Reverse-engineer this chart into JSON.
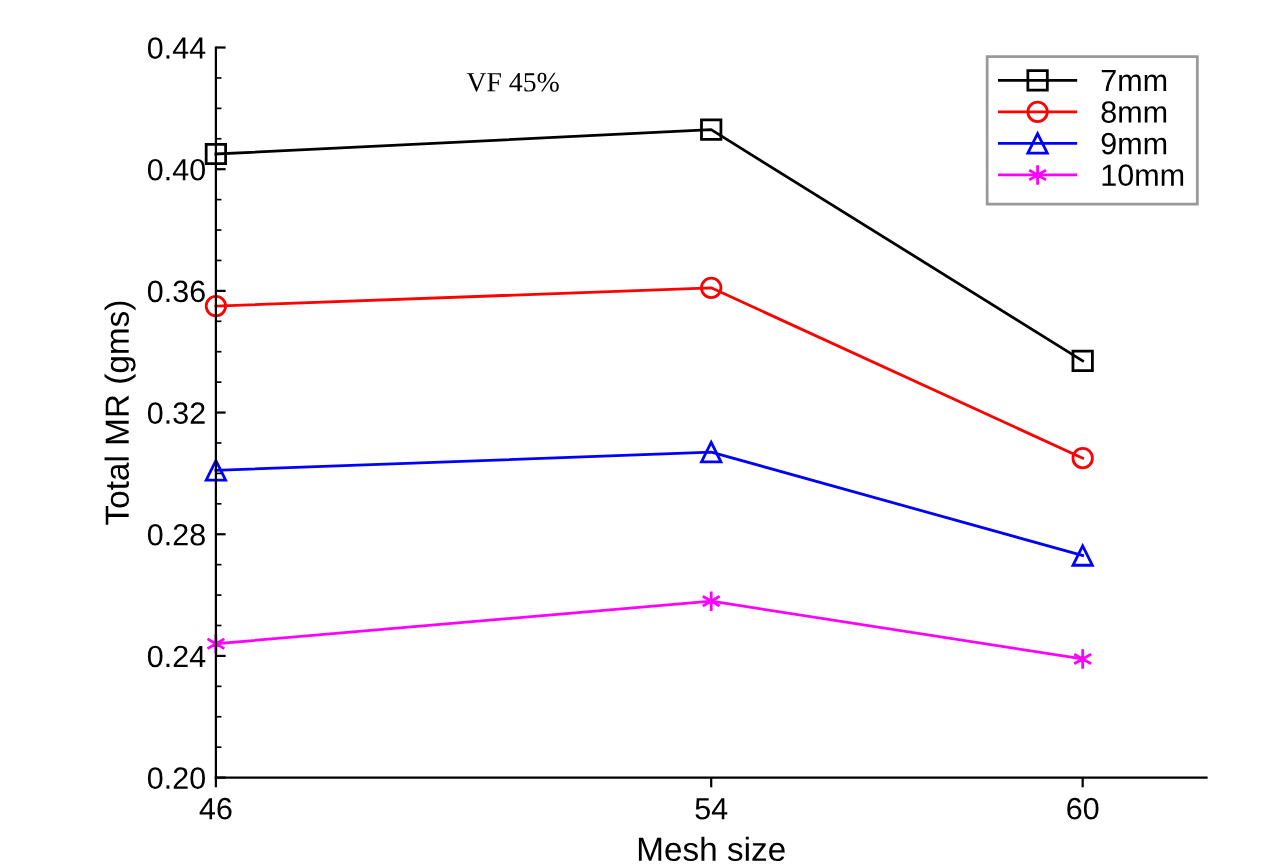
{
  "chart_data": {
    "type": "line",
    "xlabel": "Mesh size",
    "ylabel": "Total MR (gms)",
    "annotations": [
      "VF 45%"
    ],
    "x": [
      46,
      54,
      60
    ],
    "xlim": [
      46,
      62
    ],
    "xticks": [
      46,
      54,
      60
    ],
    "ylim": [
      0.2,
      0.44
    ],
    "yticks": [
      {
        "value": 0.2,
        "label": "0.20"
      },
      0.24,
      0.28,
      0.32,
      0.36,
      {
        "value": 0.4,
        "label": "0.40"
      },
      0.44
    ],
    "legend": "top right",
    "grid": false,
    "line_style": "solid",
    "series": [
      {
        "name": "7mm",
        "color": "#000000",
        "marker": "square",
        "values": [
          0.405,
          0.413,
          0.337
        ]
      },
      {
        "name": "8mm",
        "color": "#ff0000",
        "marker": "circle",
        "values": [
          0.355,
          0.361,
          0.305
        ]
      },
      {
        "name": "9mm",
        "color": "#0000ff",
        "marker": "triangle",
        "values": [
          0.301,
          0.307,
          0.273
        ]
      },
      {
        "name": "10mm",
        "color": "#ff00ff",
        "marker": "cross",
        "values": [
          0.244,
          0.258,
          0.239
        ]
      }
    ]
  }
}
